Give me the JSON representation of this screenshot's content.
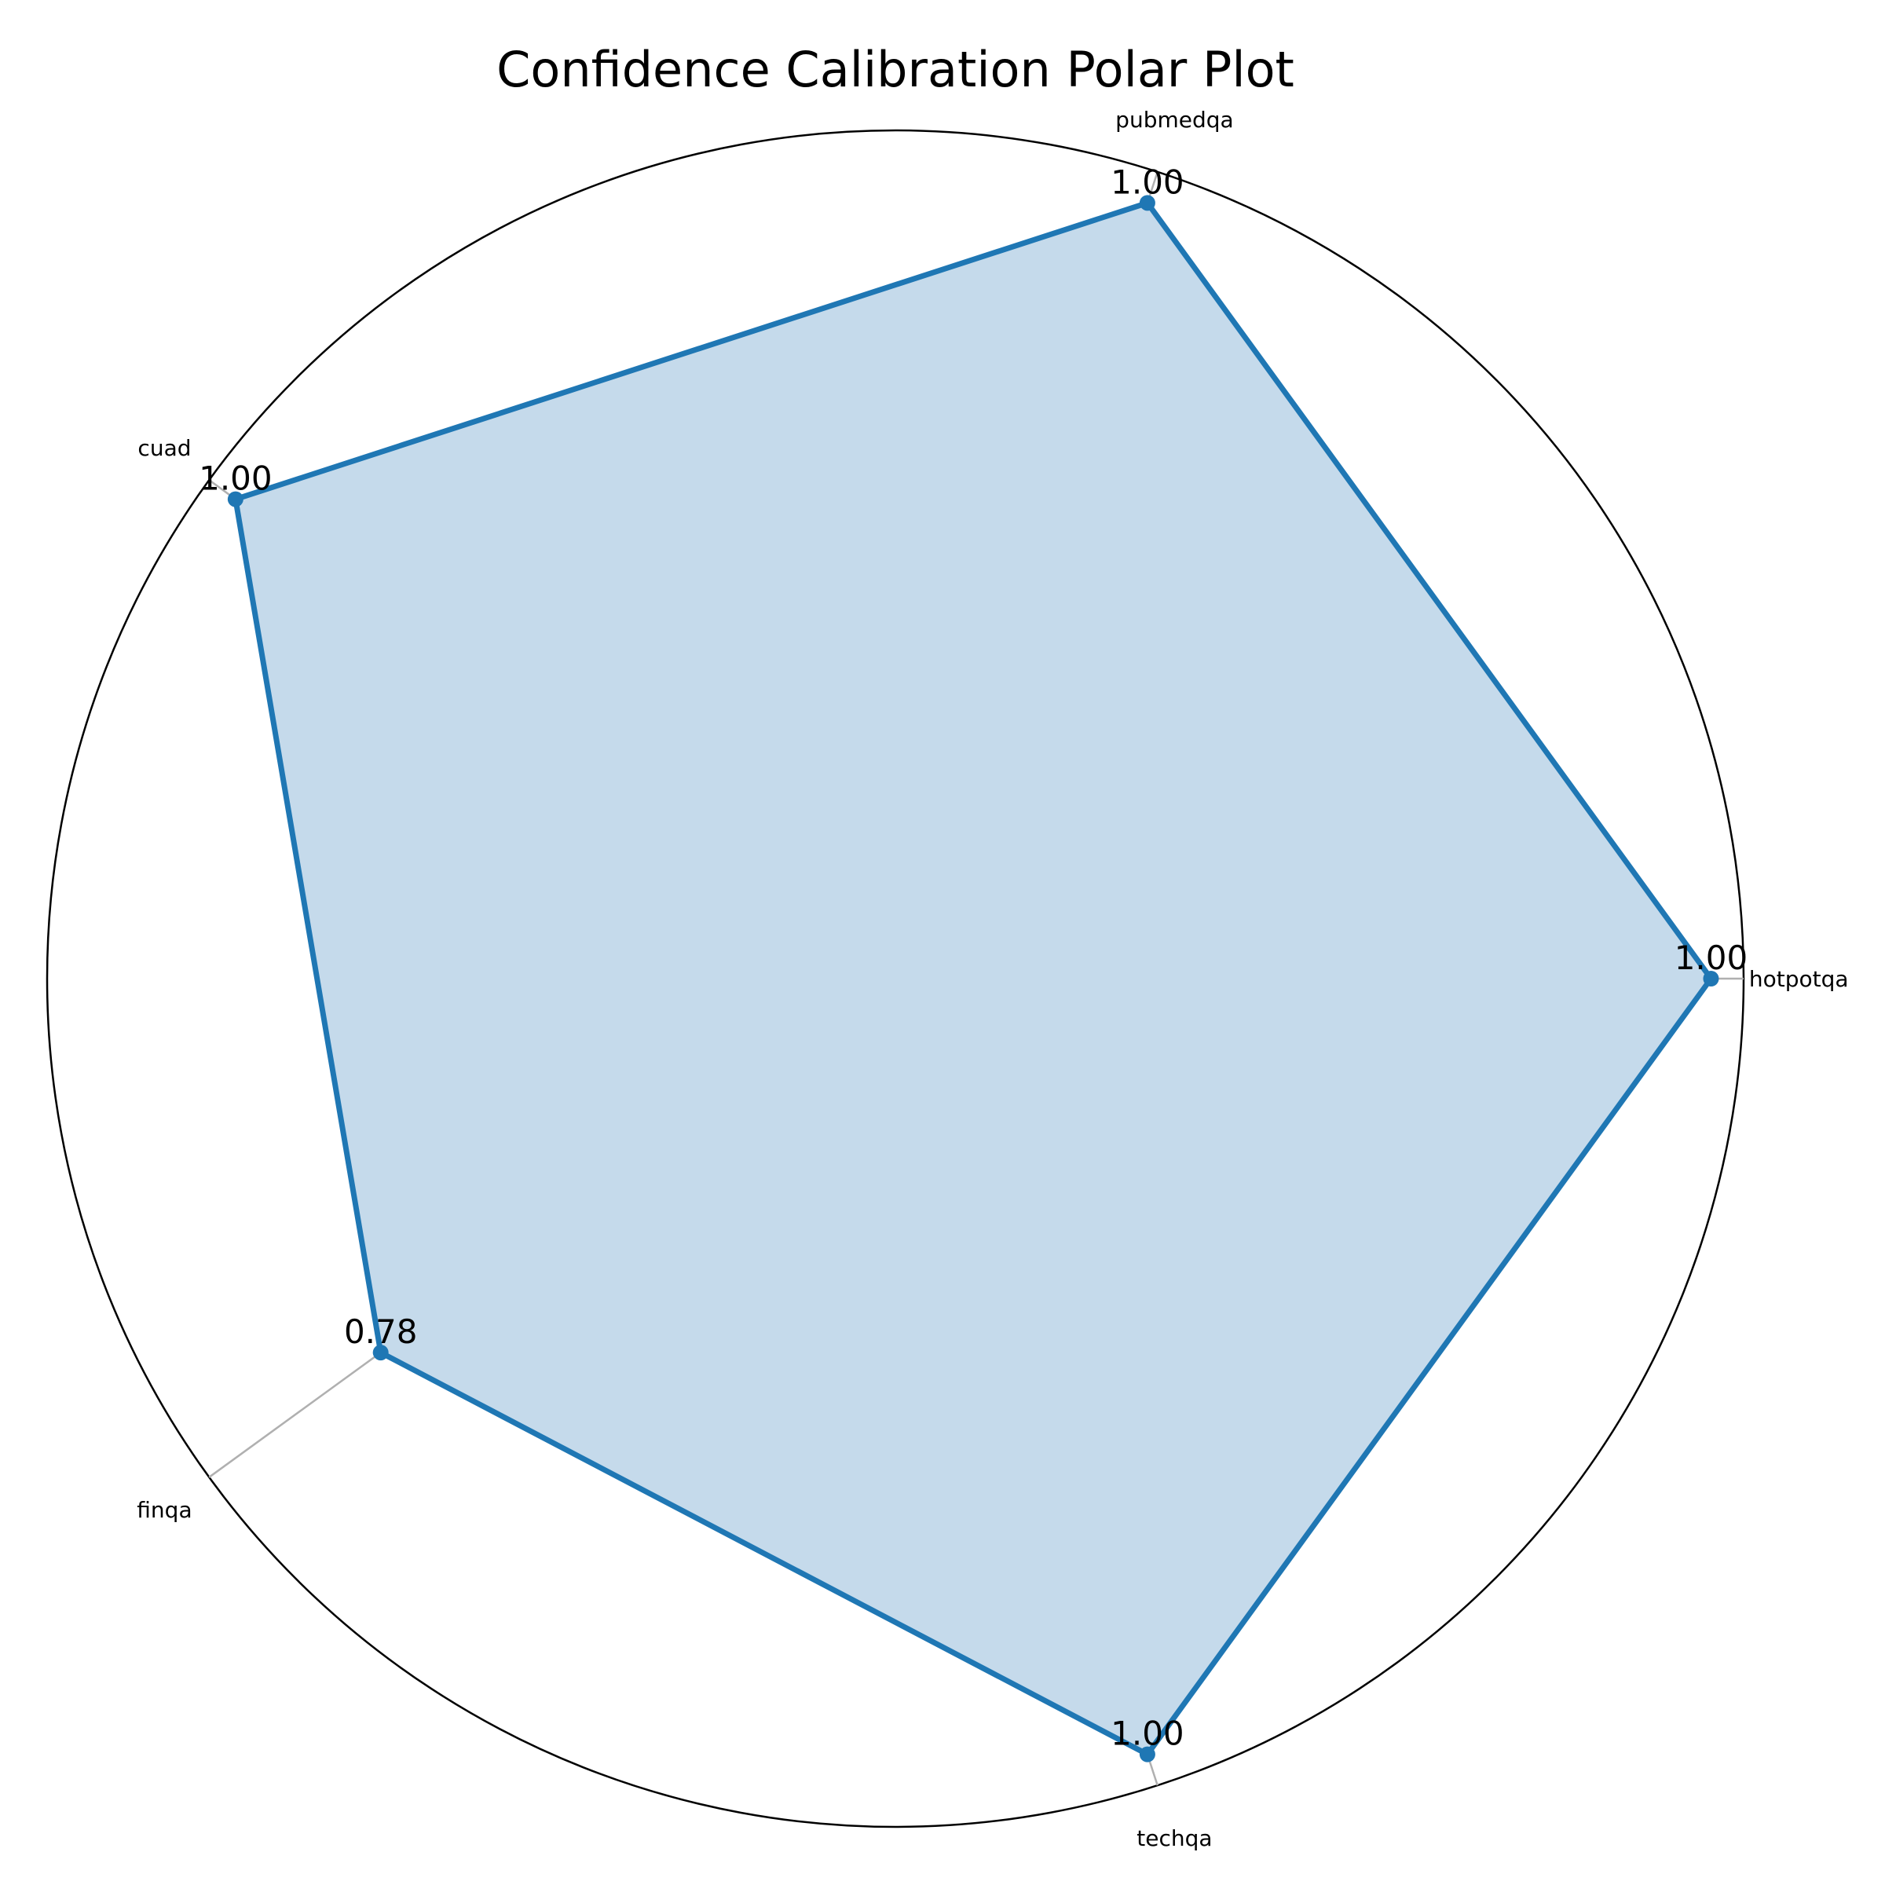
{
  "chart_data": {
    "type": "radar",
    "title": "Confidence Calibration Polar Plot",
    "categories": [
      "hotpotqa",
      "pubmedqa",
      "cuad",
      "finqa",
      "techqa"
    ],
    "series": [
      {
        "values": [
          1.0,
          1.0,
          1.0,
          0.78,
          1.0
        ]
      }
    ],
    "value_labels": [
      "1.00",
      "1.00",
      "1.00",
      "0.78",
      "1.00"
    ],
    "rlim": [
      0,
      1.04
    ],
    "grid": true,
    "color": "#1f77b4",
    "fill_color": "#c5daeb"
  }
}
